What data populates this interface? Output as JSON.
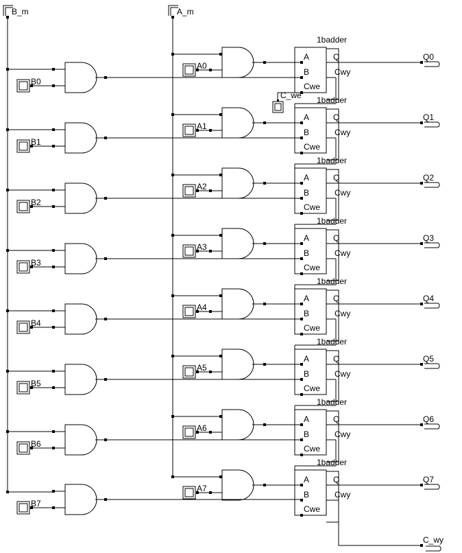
{
  "top_inputs": {
    "b_bus": "B_m",
    "a_bus": "A_m"
  },
  "carry_in": "C_we",
  "carry_out": "C_wy",
  "adder": {
    "title": "1badder",
    "pin_a": "A",
    "pin_b": "B",
    "pin_c": "Cwe",
    "pin_q": "Q",
    "pin_co": "Cwy"
  },
  "stages": [
    {
      "b": "B0",
      "a": "A0",
      "q": "Q0"
    },
    {
      "b": "B1",
      "a": "A1",
      "q": "Q1"
    },
    {
      "b": "B2",
      "a": "A2",
      "q": "Q2"
    },
    {
      "b": "B3",
      "a": "A3",
      "q": "Q3"
    },
    {
      "b": "B4",
      "a": "A4",
      "q": "Q4"
    },
    {
      "b": "B5",
      "a": "A5",
      "q": "Q5"
    },
    {
      "b": "B6",
      "a": "A6",
      "q": "Q6"
    },
    {
      "b": "B7",
      "a": "A7",
      "q": "Q7"
    }
  ]
}
